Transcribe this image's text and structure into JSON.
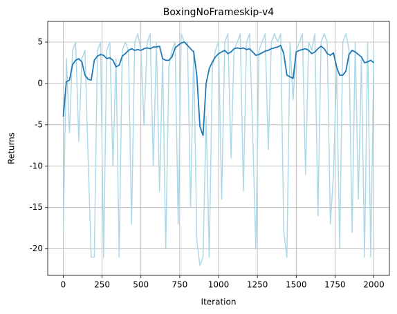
{
  "chart_data": {
    "type": "line",
    "title": "BoxingNoFrameskip-v4",
    "x_label": "Iteration",
    "y_label": "Returns",
    "x": [
      0,
      20,
      40,
      60,
      80,
      100,
      120,
      140,
      160,
      180,
      200,
      220,
      240,
      260,
      280,
      300,
      320,
      340,
      360,
      380,
      400,
      420,
      440,
      460,
      480,
      500,
      520,
      540,
      560,
      580,
      600,
      620,
      640,
      660,
      680,
      700,
      720,
      740,
      760,
      780,
      800,
      820,
      840,
      860,
      880,
      900,
      920,
      940,
      960,
      980,
      1000,
      1020,
      1040,
      1060,
      1080,
      1100,
      1120,
      1140,
      1160,
      1180,
      1200,
      1220,
      1240,
      1260,
      1280,
      1300,
      1320,
      1340,
      1360,
      1380,
      1400,
      1420,
      1440,
      1460,
      1480,
      1500,
      1520,
      1540,
      1560,
      1580,
      1600,
      1620,
      1640,
      1660,
      1680,
      1700,
      1720,
      1740,
      1760,
      1780,
      1800,
      1820,
      1840,
      1860,
      1880,
      1900,
      1920,
      1940,
      1960,
      1980,
      2000
    ],
    "series": [
      {
        "color": "#add8e6",
        "values": [
          -18,
          3,
          -6,
          4,
          5,
          -7,
          3,
          4,
          -9,
          -21,
          -21,
          4,
          5,
          -21,
          4,
          5,
          -10,
          3,
          -21,
          4,
          5,
          4,
          -17,
          5,
          6,
          4,
          -5,
          5,
          6,
          -10,
          5,
          -13,
          3,
          -20,
          2,
          4,
          5,
          -17,
          6,
          5,
          5,
          -15,
          4,
          -19,
          -22,
          -21,
          -4,
          -21,
          2,
          4,
          5,
          -14,
          5,
          6,
          -9,
          4,
          5,
          6,
          -13,
          5,
          6,
          -6,
          -20,
          4,
          5,
          6,
          -8,
          5,
          6,
          5,
          6,
          -18,
          -21,
          5,
          -2,
          4,
          5,
          6,
          -11,
          5,
          4,
          6,
          -16,
          5,
          6,
          5,
          -17,
          -11,
          2,
          -20,
          5,
          6,
          4,
          -18,
          5,
          -14,
          3,
          -21,
          5,
          -21,
          4
        ]
      },
      {
        "color": "#1f77b4",
        "values": [
          -4,
          0.2,
          0.4,
          2.3,
          2.8,
          3,
          2.6,
          1,
          0.5,
          0.4,
          2.8,
          3.3,
          3.5,
          3.4,
          3,
          3.1,
          2.8,
          2,
          2.2,
          3.3,
          3.6,
          4,
          4.2,
          4,
          4.1,
          4,
          4.2,
          4.3,
          4.2,
          4.4,
          4.4,
          4.5,
          3,
          2.8,
          2.8,
          3.2,
          4.3,
          4.6,
          4.9,
          5,
          4.6,
          4.2,
          3.8,
          1,
          -5.2,
          -6.3,
          0,
          1.8,
          2.6,
          3.2,
          3.6,
          3.8,
          4,
          3.6,
          3.8,
          4.2,
          4.3,
          4.2,
          4.3,
          4.1,
          4.2,
          3.8,
          3.4,
          3.5,
          3.7,
          3.9,
          4,
          4.2,
          4.3,
          4.4,
          4.6,
          3.6,
          1,
          0.8,
          0.6,
          3.8,
          4,
          4.1,
          4.2,
          4,
          3.6,
          3.8,
          4.2,
          4.5,
          4.2,
          3.6,
          3.4,
          3.7,
          2,
          1,
          1,
          1.5,
          3.5,
          4,
          3.8,
          3.5,
          3.2,
          2.5,
          2.6,
          2.8,
          2.5
        ]
      }
    ],
    "xlim": [
      -100,
      2100
    ],
    "ylim": [
      -23.2,
      7.5
    ],
    "xticks": [
      0,
      250,
      500,
      750,
      1000,
      1250,
      1500,
      1750,
      2000
    ],
    "yticks": [
      -20,
      -15,
      -10,
      -5,
      0,
      5
    ],
    "grid": true
  }
}
